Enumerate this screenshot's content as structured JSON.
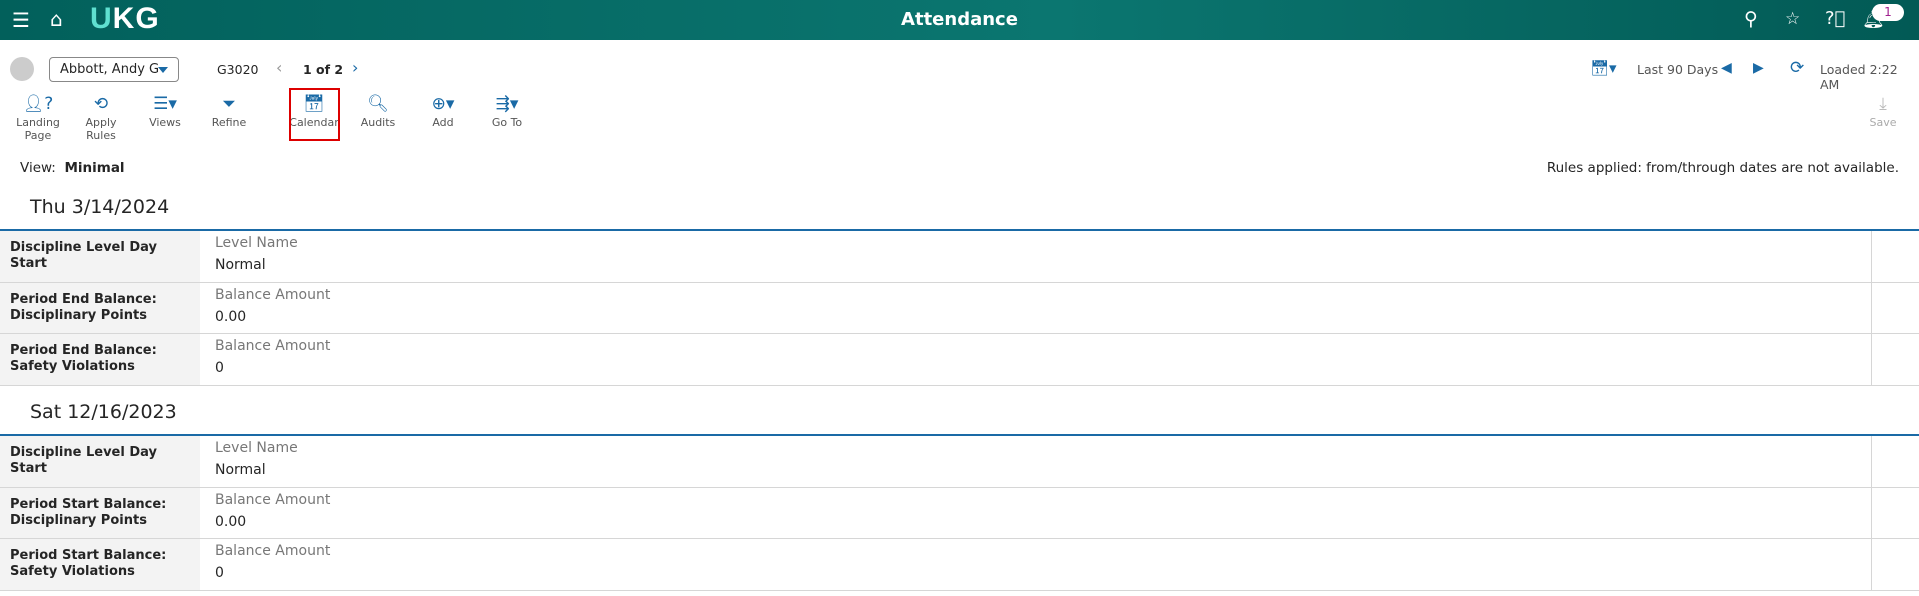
{
  "header": {
    "title": "Attendance",
    "logo": "UKG",
    "notification_count": "1",
    "icons": [
      "menu-icon",
      "home-icon",
      "search-icon",
      "feedback-icon",
      "help-icon",
      "bell-icon"
    ]
  },
  "employee": {
    "name": "Abbott, Andy G",
    "id": "G3020",
    "pager": "1 of 2"
  },
  "timeframe": {
    "label": "Last 90 Days",
    "loaded": "Loaded 2:22 AM"
  },
  "toolbar": [
    {
      "icon": "landing-page-icon",
      "label": "Landing Page"
    },
    {
      "icon": "apply-rules-icon",
      "label": "Apply Rules"
    },
    {
      "icon": "views-icon",
      "label": "Views"
    },
    {
      "icon": "refine-icon",
      "label": "Refine"
    },
    {
      "icon": "calendar-icon",
      "label": "Calendar",
      "highlighted": true
    },
    {
      "icon": "audits-icon",
      "label": "Audits"
    },
    {
      "icon": "add-icon",
      "label": "Add"
    },
    {
      "icon": "goto-icon",
      "label": "Go To"
    }
  ],
  "save_label": "Save",
  "view": {
    "label": "View:",
    "value": "Minimal"
  },
  "rules_note": "Rules applied: from/through dates are not available.",
  "highlight_color": "#dd0000",
  "days": [
    {
      "date": "Thu  3/14/2024",
      "rows": [
        {
          "label": "Discipline Level Day Start",
          "caption": "Level Name",
          "value": "Normal"
        },
        {
          "label": "Period End Balance: Disciplinary Points",
          "caption": "Balance Amount",
          "value": "0.00"
        },
        {
          "label": "Period End Balance: Safety Violations",
          "caption": "Balance Amount",
          "value": "0"
        }
      ]
    },
    {
      "date": "Sat  12/16/2023",
      "rows": [
        {
          "label": "Discipline Level Day Start",
          "caption": "Level Name",
          "value": "Normal"
        },
        {
          "label": "Period Start Balance: Disciplinary Points",
          "caption": "Balance Amount",
          "value": "0.00"
        },
        {
          "label": "Period Start Balance: Safety Violations",
          "caption": "Balance Amount",
          "value": "0"
        }
      ]
    }
  ]
}
